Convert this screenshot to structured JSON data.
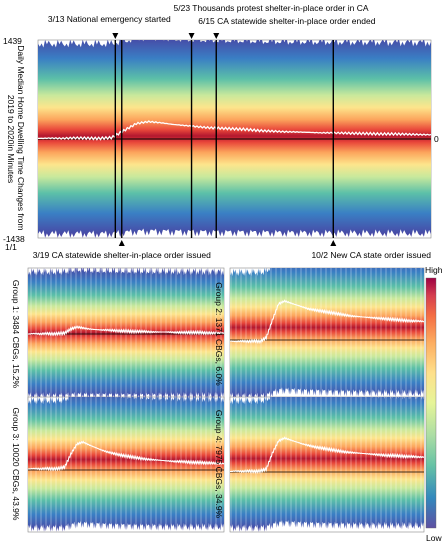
{
  "chart_data": [
    {
      "type": "heatmap",
      "panel": "main",
      "ylabel": "Daily Median Home Dwelling Time Changes from 2019 to 2020in Minutes",
      "y_top_label": "1439",
      "y_bottom_label": "-1438",
      "zero_label": "0",
      "x_start_label": "1/1",
      "events": [
        {
          "date": "3/13",
          "label": "3/13 National emergency started",
          "position": "top"
        },
        {
          "date": "3/19",
          "label": "3/19 CA statewide shelter-in-place order issued",
          "position": "bottom"
        },
        {
          "date": "5/23",
          "label": "5/23 Thousands protest shelter-in-place order in CA",
          "position": "top"
        },
        {
          "date": "6/15",
          "label": "6/15 CA statewide shelter-in-place order ended",
          "position": "top"
        },
        {
          "date": "10/2",
          "label": "10/2 New CA state order issued",
          "position": "bottom"
        }
      ],
      "median_profile": [
        0.02,
        0.03,
        0.02,
        0.04,
        0.03,
        0.02,
        0.05,
        0.3,
        0.55,
        0.62,
        0.58,
        0.52,
        0.48,
        0.44,
        0.4,
        0.38,
        0.36,
        0.34,
        0.3,
        0.28,
        0.26,
        0.25,
        0.24,
        0.22,
        0.22,
        0.21,
        0.2,
        0.19,
        0.18,
        0.18,
        0.17,
        0.16,
        0.15
      ]
    },
    {
      "type": "heatmap",
      "panel": "group-1",
      "label": "Group 1: 3484 CBGs, 15.2%",
      "median_profile": [
        0.0,
        0.01,
        0.0,
        0.01,
        0.0,
        0.01,
        0.02,
        0.1,
        0.14,
        0.12,
        0.1,
        0.09,
        0.08,
        0.08,
        0.07,
        0.06,
        0.06,
        0.05,
        0.05,
        0.05,
        0.04,
        0.04,
        0.04,
        0.04,
        0.03,
        0.03,
        0.03,
        0.03,
        0.03,
        0.02,
        0.02,
        0.02,
        0.02
      ]
    },
    {
      "type": "heatmap",
      "panel": "group-2",
      "label": "Group 2: 1371 CBGs, 6.0%",
      "median_profile": [
        -0.02,
        -0.03,
        -0.02,
        -0.03,
        -0.02,
        -0.03,
        0.05,
        0.4,
        0.72,
        0.78,
        0.74,
        0.7,
        0.66,
        0.62,
        0.6,
        0.58,
        0.56,
        0.54,
        0.52,
        0.5,
        0.48,
        0.47,
        0.46,
        0.45,
        0.44,
        0.43,
        0.42,
        0.41,
        0.4,
        0.39,
        0.38,
        0.38,
        0.37
      ]
    },
    {
      "type": "heatmap",
      "panel": "group-3",
      "label": "Group 3: 10020 CBGs, 43.9%",
      "median_profile": [
        0.02,
        0.03,
        0.02,
        0.03,
        0.02,
        0.03,
        0.06,
        0.32,
        0.52,
        0.56,
        0.5,
        0.45,
        0.4,
        0.36,
        0.33,
        0.3,
        0.28,
        0.26,
        0.24,
        0.22,
        0.21,
        0.2,
        0.19,
        0.18,
        0.17,
        0.17,
        0.16,
        0.15,
        0.15,
        0.14,
        0.14,
        0.13,
        0.13
      ]
    },
    {
      "type": "heatmap",
      "panel": "group-4",
      "label": "Group 4: 7975 CBGs, 34.9%",
      "median_profile": [
        0.01,
        0.02,
        0.01,
        0.02,
        0.01,
        0.02,
        0.06,
        0.38,
        0.62,
        0.68,
        0.64,
        0.6,
        0.56,
        0.53,
        0.5,
        0.48,
        0.46,
        0.44,
        0.42,
        0.4,
        0.39,
        0.38,
        0.37,
        0.36,
        0.35,
        0.34,
        0.33,
        0.33,
        0.32,
        0.31,
        0.31,
        0.3,
        0.3
      ]
    }
  ],
  "colorbar": {
    "high_label": "High",
    "low_label": "Low",
    "colors": [
      "#5e4fa2",
      "#3288bd",
      "#66c2a5",
      "#abdda4",
      "#e6f598",
      "#fee08b",
      "#fdae61",
      "#f46d43",
      "#d53e4f",
      "#9e0142"
    ]
  },
  "colors": {
    "median_line": "#ffffff",
    "zero_line": "#000000",
    "event_line": "#000000",
    "trace_color": "#3b3bb0"
  }
}
